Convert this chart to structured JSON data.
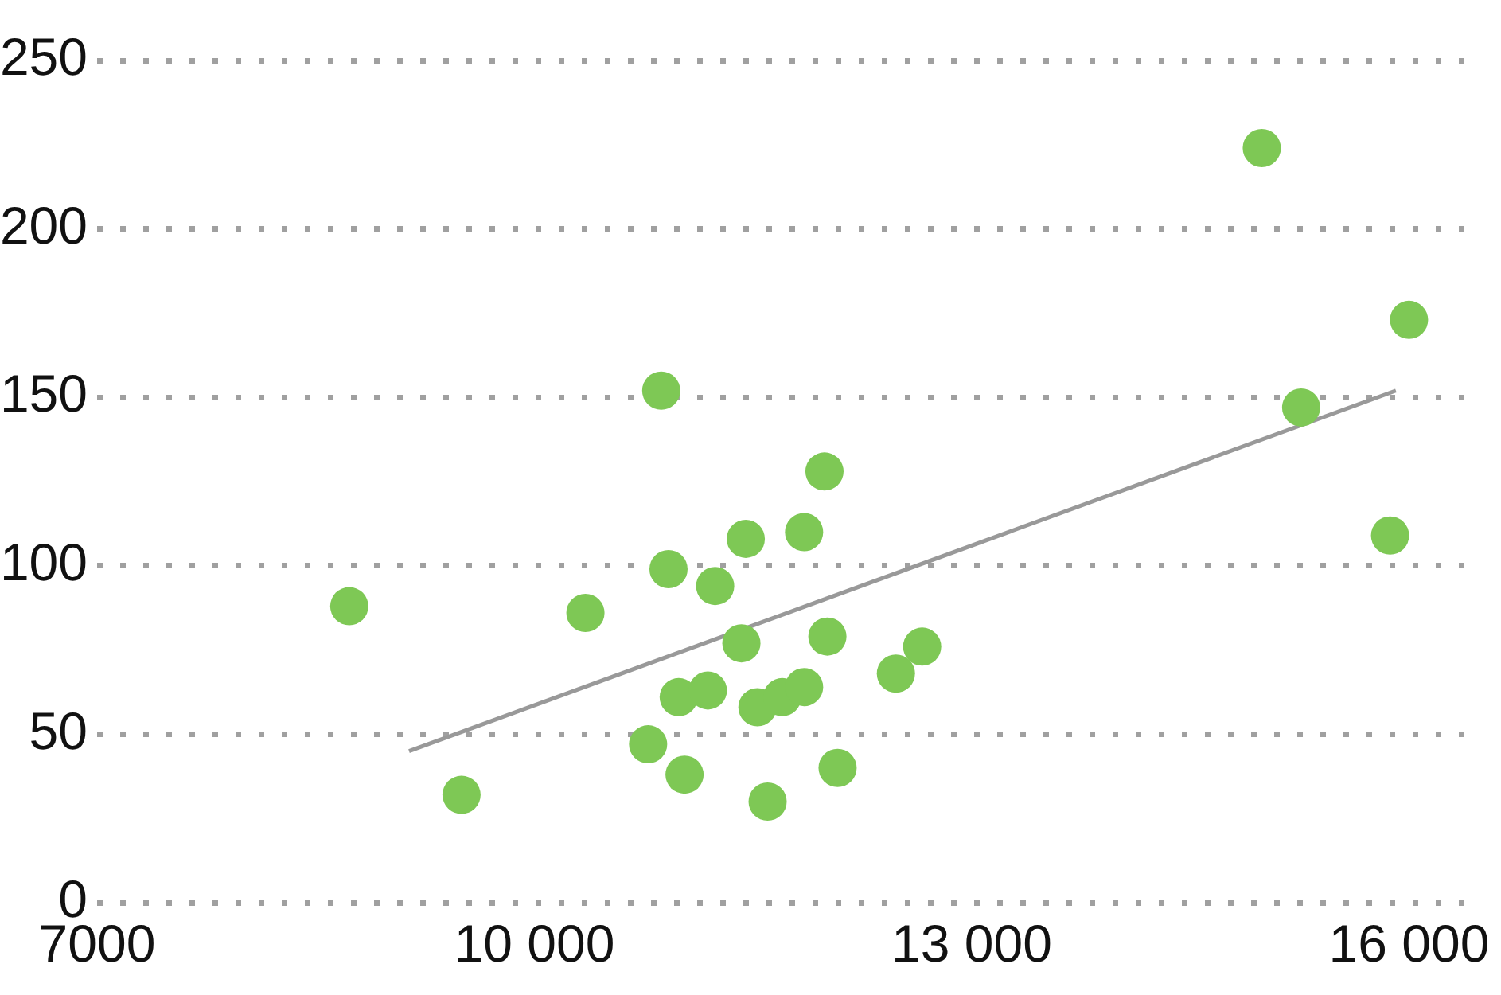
{
  "chart_data": {
    "type": "scatter",
    "xlim": [
      7000,
      16500
    ],
    "xticks": [
      {
        "value": 7000,
        "label": "7000"
      },
      {
        "value": 10000,
        "label": "10 000"
      },
      {
        "value": 13000,
        "label": "13 000"
      },
      {
        "value": 16000,
        "label": "16 000"
      }
    ],
    "ylim": [
      0,
      250
    ],
    "yticks": [
      0,
      50,
      100,
      150,
      200,
      250
    ],
    "grid": "y",
    "marker": "circle",
    "series": [
      {
        "color": "#7ec855",
        "x": [
          8730,
          9500,
          10350,
          10870,
          10780,
          10920,
          10990,
          11030,
          11190,
          11240,
          11420,
          11450,
          11530,
          11600,
          11700,
          11850,
          11850,
          11990,
          12010,
          12080,
          12480,
          12660,
          14990,
          15260,
          15870,
          16000
        ],
        "values": [
          88,
          32,
          86,
          152,
          47,
          99,
          61,
          38,
          63,
          94,
          77,
          108,
          58,
          30,
          61,
          64,
          110,
          128,
          79,
          40,
          68,
          76,
          224,
          147,
          109,
          173
        ]
      },
      {
        "type": "line",
        "marker": "none",
        "color": "#999999",
        "x": [
          9140,
          15910
        ],
        "values": [
          45,
          152
        ]
      }
    ]
  }
}
